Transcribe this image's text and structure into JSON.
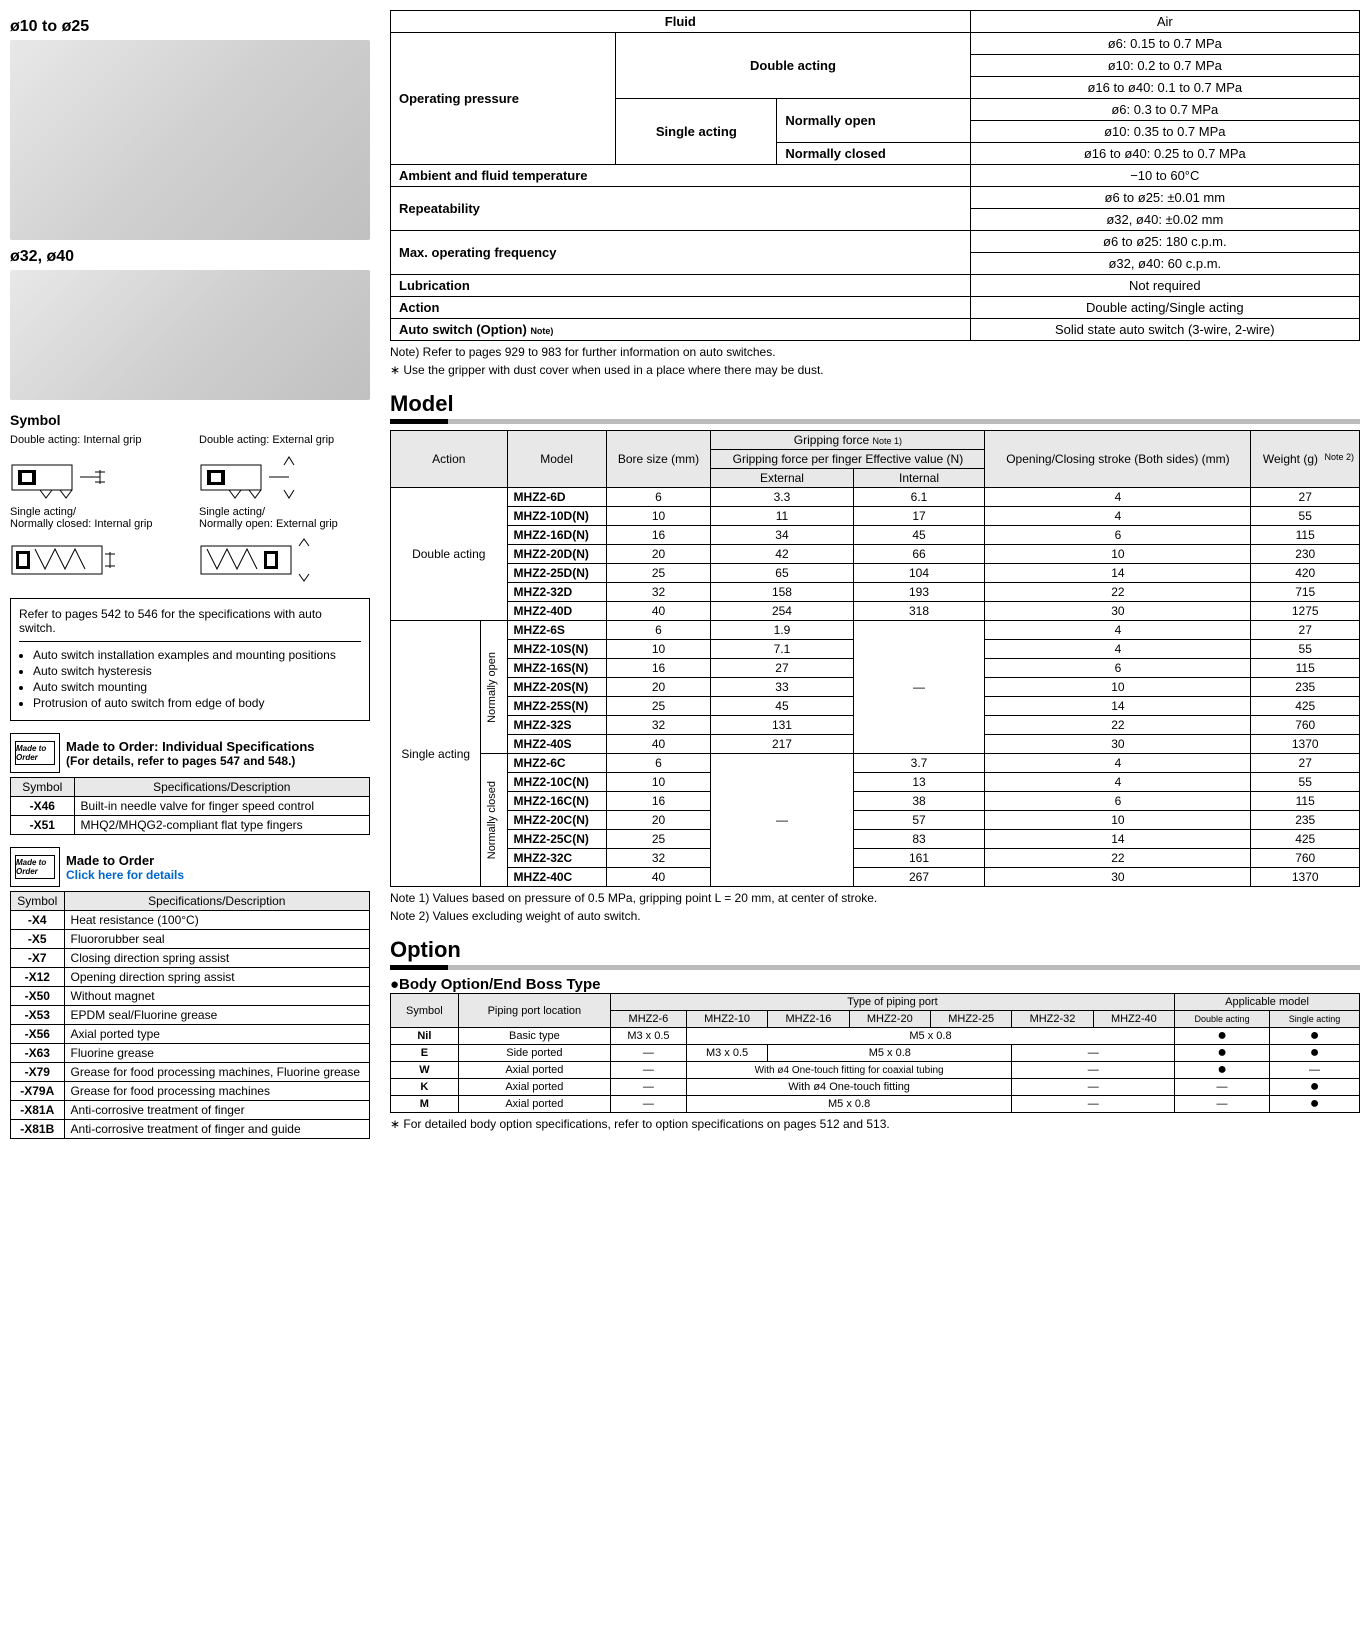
{
  "left": {
    "sizeLabel1": "ø10 to ø25",
    "sizeLabel2": "ø32, ø40",
    "symbolTitle": "Symbol",
    "symbols": {
      "s1": "Double acting: Internal grip",
      "s2": "Double acting: External grip",
      "s3": "Single acting/\nNormally closed: Internal grip",
      "s4": "Single acting/\nNormally open: External grip"
    },
    "refBox": {
      "lead": "Refer to pages 542 to 546 for the specifications with auto switch.",
      "bullets": [
        "Auto switch installation examples and mounting positions",
        "Auto switch hysteresis",
        "Auto switch mounting",
        "Protrusion of auto switch from edge of body"
      ]
    },
    "mto1": {
      "iconText": "Made to Order",
      "title": "Made to Order: Individual Specifications",
      "sub": "(For details, refer to pages 547 and 548.)",
      "cols": [
        "Symbol",
        "Specifications/Description"
      ],
      "rows": [
        [
          "-X46",
          "Built-in needle valve for finger speed control"
        ],
        [
          "-X51",
          "MHQ2/MHQG2-compliant flat type fingers"
        ]
      ]
    },
    "mto2": {
      "iconText": "Made to Order",
      "title": "Made to Order",
      "link": "Click here for details",
      "cols": [
        "Symbol",
        "Specifications/Description"
      ],
      "rows": [
        [
          "-X4",
          "Heat resistance (100°C)"
        ],
        [
          "-X5",
          "Fluororubber seal"
        ],
        [
          "-X7",
          "Closing direction spring assist"
        ],
        [
          "-X12",
          "Opening direction spring assist"
        ],
        [
          "-X50",
          "Without magnet"
        ],
        [
          "-X53",
          "EPDM seal/Fluorine grease"
        ],
        [
          "-X56",
          "Axial ported type"
        ],
        [
          "-X63",
          "Fluorine grease"
        ],
        [
          "-X79",
          "Grease for food processing machines, Fluorine grease"
        ],
        [
          "-X79A",
          "Grease for food processing machines"
        ],
        [
          "-X81A",
          "Anti-corrosive treatment of finger"
        ],
        [
          "-X81B",
          "Anti-corrosive treatment of finger and guide"
        ]
      ]
    }
  },
  "specTable": {
    "rows": {
      "fluid_l": "Fluid",
      "fluid_v": "Air",
      "op_l": "Operating pressure",
      "da_l": "Double acting",
      "da_v1": "ø6: 0.15 to 0.7 MPa",
      "da_v2": "ø10: 0.2 to 0.7 MPa",
      "da_v3": "ø16 to ø40: 0.1 to 0.7 MPa",
      "sa_l": "Single acting",
      "no_l": "Normally open",
      "nc_l": "Normally closed",
      "sa_v1": "ø6: 0.3 to 0.7 MPa",
      "sa_v2": "ø10: 0.35 to 0.7 MPa",
      "sa_v3": "ø16 to ø40: 0.25 to 0.7 MPa",
      "amb_l": "Ambient and fluid temperature",
      "amb_v": "−10 to 60°C",
      "rep_l": "Repeatability",
      "rep_v1": "ø6 to ø25: ±0.01 mm",
      "rep_v2": "ø32, ø40: ±0.02 mm",
      "freq_l": "Max. operating frequency",
      "freq_v1": "ø6 to ø25: 180 c.p.m.",
      "freq_v2": "ø32, ø40: 60 c.p.m.",
      "lub_l": "Lubrication",
      "lub_v": "Not required",
      "act_l": "Action",
      "act_v": "Double acting/Single acting",
      "sw_l": "Auto switch (Option)",
      "sw_note": "Note)",
      "sw_v": "Solid state auto switch (3-wire, 2-wire)"
    },
    "note1": "Note) Refer to pages 929 to 983 for further information on auto switches.",
    "note2": "∗ Use the gripper with dust cover when used in a place where there may be dust."
  },
  "modelSection": {
    "title": "Model",
    "headers": {
      "action": "Action",
      "model": "Model",
      "bore": "Bore size (mm)",
      "gforce": "Gripping force",
      "gnote": "Note 1)",
      "gsub": "Gripping force per finger Effective value (N)",
      "ext": "External",
      "int": "Internal",
      "stroke": "Opening/Closing stroke (Both sides) (mm)",
      "weight": "Weight (g)",
      "wnote": "Note 2)"
    },
    "groups": {
      "double": "Double acting",
      "single": "Single acting",
      "no": "Normally open",
      "nc": "Normally closed"
    },
    "double": [
      {
        "m": "MHZ2-6D",
        "b": "6",
        "e": "3.3",
        "i": "6.1",
        "s": "4",
        "w": "27"
      },
      {
        "m": "MHZ2-10D(N)",
        "b": "10",
        "e": "11",
        "i": "17",
        "s": "4",
        "w": "55"
      },
      {
        "m": "MHZ2-16D(N)",
        "b": "16",
        "e": "34",
        "i": "45",
        "s": "6",
        "w": "115"
      },
      {
        "m": "MHZ2-20D(N)",
        "b": "20",
        "e": "42",
        "i": "66",
        "s": "10",
        "w": "230"
      },
      {
        "m": "MHZ2-25D(N)",
        "b": "25",
        "e": "65",
        "i": "104",
        "s": "14",
        "w": "420"
      },
      {
        "m": "MHZ2-32D",
        "b": "32",
        "e": "158",
        "i": "193",
        "s": "22",
        "w": "715"
      },
      {
        "m": "MHZ2-40D",
        "b": "40",
        "e": "254",
        "i": "318",
        "s": "30",
        "w": "1275"
      }
    ],
    "single_no": [
      {
        "m": "MHZ2-6S",
        "b": "6",
        "e": "1.9",
        "s": "4",
        "w": "27"
      },
      {
        "m": "MHZ2-10S(N)",
        "b": "10",
        "e": "7.1",
        "s": "4",
        "w": "55"
      },
      {
        "m": "MHZ2-16S(N)",
        "b": "16",
        "e": "27",
        "s": "6",
        "w": "115"
      },
      {
        "m": "MHZ2-20S(N)",
        "b": "20",
        "e": "33",
        "s": "10",
        "w": "235"
      },
      {
        "m": "MHZ2-25S(N)",
        "b": "25",
        "e": "45",
        "s": "14",
        "w": "425"
      },
      {
        "m": "MHZ2-32S",
        "b": "32",
        "e": "131",
        "s": "22",
        "w": "760"
      },
      {
        "m": "MHZ2-40S",
        "b": "40",
        "e": "217",
        "s": "30",
        "w": "1370"
      }
    ],
    "single_nc": [
      {
        "m": "MHZ2-6C",
        "b": "6",
        "i": "3.7",
        "s": "4",
        "w": "27"
      },
      {
        "m": "MHZ2-10C(N)",
        "b": "10",
        "i": "13",
        "s": "4",
        "w": "55"
      },
      {
        "m": "MHZ2-16C(N)",
        "b": "16",
        "i": "38",
        "s": "6",
        "w": "115"
      },
      {
        "m": "MHZ2-20C(N)",
        "b": "20",
        "i": "57",
        "s": "10",
        "w": "235"
      },
      {
        "m": "MHZ2-25C(N)",
        "b": "25",
        "i": "83",
        "s": "14",
        "w": "425"
      },
      {
        "m": "MHZ2-32C",
        "b": "32",
        "i": "161",
        "s": "22",
        "w": "760"
      },
      {
        "m": "MHZ2-40C",
        "b": "40",
        "i": "267",
        "s": "30",
        "w": "1370"
      }
    ],
    "note1": "Note 1) Values based on pressure of 0.5 MPa, gripping point L = 20 mm, at center of stroke.",
    "note2": "Note 2) Values excluding weight of auto switch."
  },
  "optionSection": {
    "title": "Option",
    "sub": "●Body Option/End Boss Type",
    "headers": {
      "sym": "Symbol",
      "loc": "Piping port location",
      "type": "Type of piping port",
      "app": "Applicable model",
      "m6": "MHZ2-6",
      "m10": "MHZ2-10",
      "m16": "MHZ2-16",
      "m20": "MHZ2-20",
      "m25": "MHZ2-25",
      "m32": "MHZ2-32",
      "m40": "MHZ2-40",
      "da": "Double acting",
      "sa": "Single acting"
    },
    "rows": [
      {
        "sym": "Nil",
        "loc": "Basic type",
        "c6": "M3 x 0.5",
        "cRest": "M5 x 0.8",
        "da": "●",
        "sa": "●"
      },
      {
        "sym": "E",
        "loc": "Side ported",
        "c6": "—",
        "c10": "M3 x 0.5",
        "cMid": "M5 x 0.8",
        "c3240": "—",
        "da": "●",
        "sa": "●"
      },
      {
        "sym": "W",
        "loc": "Axial ported",
        "c6": "—",
        "cMid": "With ø4 One-touch fitting for coaxial tubing",
        "c3240": "—",
        "da": "●",
        "sa": "—"
      },
      {
        "sym": "K",
        "loc": "Axial ported",
        "c6": "—",
        "cMid": "With ø4 One-touch fitting",
        "c3240": "—",
        "da": "—",
        "sa": "●"
      },
      {
        "sym": "M",
        "loc": "Axial ported",
        "c6": "—",
        "cMid": "M5 x 0.8",
        "c3240": "—",
        "da": "—",
        "sa": "●"
      }
    ],
    "foot": "∗ For detailed body option specifications, refer to option specifications on pages 512 and 513."
  }
}
